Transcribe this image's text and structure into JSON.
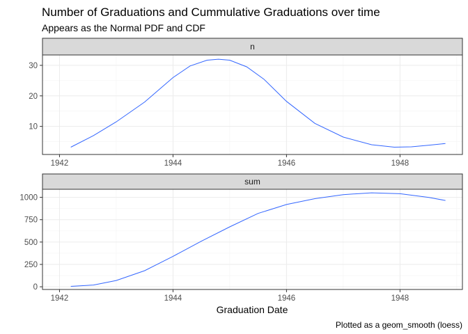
{
  "title": "Number of Graduations and Cummulative Graduations over time",
  "subtitle": "Appears as the Normal PDF and CDF",
  "caption": "Plotted as a geom_smooth (loess)",
  "colors": {
    "line": "#3366ff",
    "strip": "#d9d9d9"
  },
  "chart_data": [
    {
      "type": "line",
      "facet": "n",
      "xlabel": "Graduation Date",
      "ylabel": "",
      "x_ticks": [
        1942,
        1944,
        1946,
        1948
      ],
      "y_ticks": [
        10,
        20,
        30
      ],
      "xlim": [
        1941.7,
        1949.1
      ],
      "ylim": [
        0.8,
        33.4
      ],
      "grid": true,
      "x": [
        1942.2,
        1942.6,
        1943.0,
        1943.5,
        1944.0,
        1944.3,
        1944.6,
        1944.8,
        1945.0,
        1945.3,
        1945.6,
        1946.0,
        1946.5,
        1947.0,
        1947.5,
        1947.9,
        1948.2,
        1948.5,
        1948.8
      ],
      "y": [
        3.2,
        7.0,
        11.5,
        18.0,
        26.0,
        29.8,
        31.7,
        32.0,
        31.7,
        29.5,
        25.5,
        18.2,
        11.0,
        6.5,
        4.0,
        3.2,
        3.3,
        3.8,
        4.4
      ]
    },
    {
      "type": "line",
      "facet": "sum",
      "xlabel": "Graduation Date",
      "ylabel": "",
      "x_ticks": [
        1942,
        1944,
        1946,
        1948
      ],
      "y_ticks": [
        0,
        250,
        500,
        750,
        1000
      ],
      "xlim": [
        1941.7,
        1949.1
      ],
      "ylim": [
        -30,
        1090
      ],
      "grid": true,
      "x": [
        1942.2,
        1942.6,
        1943.0,
        1943.5,
        1944.0,
        1944.5,
        1945.0,
        1945.5,
        1946.0,
        1946.5,
        1947.0,
        1947.5,
        1948.0,
        1948.5,
        1948.8
      ],
      "y": [
        5,
        20,
        70,
        180,
        340,
        510,
        670,
        820,
        920,
        985,
        1030,
        1050,
        1040,
        1000,
        965
      ]
    }
  ]
}
